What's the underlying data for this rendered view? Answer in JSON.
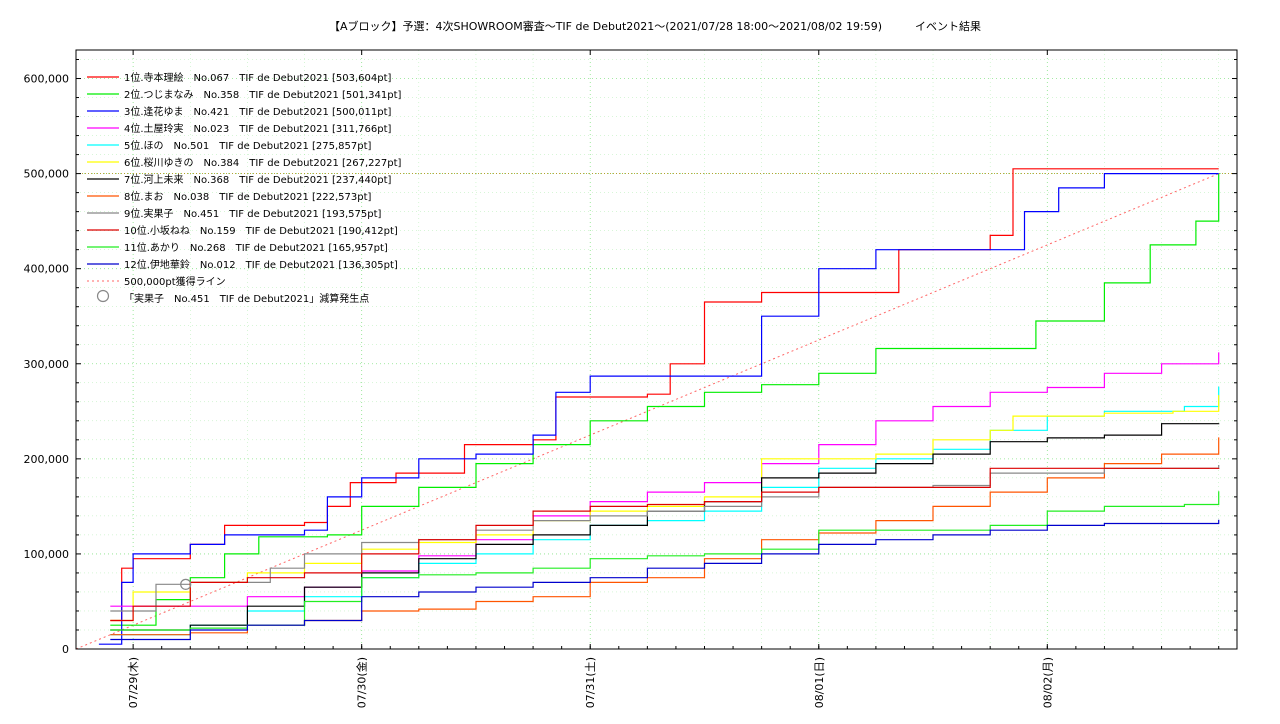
{
  "chart_data": {
    "type": "line",
    "title": "【Aブロック】予選：4次SHOWROOM審査〜TIF de Debut2021〜(2021/07/28 18:00〜2021/08/02 19:59)　　　イベント結果",
    "xlabel": "",
    "ylabel": "",
    "xlim": [
      0,
      5.08
    ],
    "ylim": [
      0,
      630000
    ],
    "y_ticks": [
      0,
      100000,
      200000,
      300000,
      400000,
      500000,
      600000
    ],
    "y_tick_labels": [
      "0",
      "100,000",
      "200,000",
      "300,000",
      "400,000",
      "500,000",
      "600,000"
    ],
    "x_ticks": [
      0.25,
      1.25,
      2.25,
      3.25,
      4.25
    ],
    "x_tick_labels": [
      "07/29(木)",
      "07/30(金)",
      "07/31(土)",
      "08/01(日)",
      "08/02(月)"
    ],
    "grid": true,
    "legend_position": "top-left",
    "series": [
      {
        "name": "1位.寺本理絵　No.067　TIF de Debut2021 [503,604pt]",
        "color": "#ff0000",
        "points": [
          [
            0.15,
            30000
          ],
          [
            0.2,
            85000
          ],
          [
            0.25,
            95000
          ],
          [
            0.4,
            95000
          ],
          [
            0.5,
            110000
          ],
          [
            0.65,
            130000
          ],
          [
            1.0,
            133000
          ],
          [
            1.1,
            150000
          ],
          [
            1.2,
            175000
          ],
          [
            1.4,
            185000
          ],
          [
            1.7,
            215000
          ],
          [
            2.0,
            220000
          ],
          [
            2.1,
            265000
          ],
          [
            2.5,
            268000
          ],
          [
            2.6,
            300000
          ],
          [
            2.75,
            365000
          ],
          [
            3.0,
            375000
          ],
          [
            3.5,
            375000
          ],
          [
            3.6,
            420000
          ],
          [
            4.0,
            435000
          ],
          [
            4.1,
            505000
          ],
          [
            5.0,
            505000
          ]
        ]
      },
      {
        "name": "2位.つじまなみ　No.358　TIF de Debut2021 [501,341pt]",
        "color": "#00ee00",
        "points": [
          [
            0.15,
            25000
          ],
          [
            0.35,
            52000
          ],
          [
            0.5,
            75000
          ],
          [
            0.65,
            100000
          ],
          [
            0.8,
            118000
          ],
          [
            1.1,
            120000
          ],
          [
            1.25,
            150000
          ],
          [
            1.5,
            170000
          ],
          [
            1.75,
            195000
          ],
          [
            2.0,
            215000
          ],
          [
            2.25,
            240000
          ],
          [
            2.5,
            255000
          ],
          [
            2.75,
            270000
          ],
          [
            3.0,
            278000
          ],
          [
            3.25,
            290000
          ],
          [
            3.5,
            316000
          ],
          [
            4.0,
            316000
          ],
          [
            4.2,
            345000
          ],
          [
            4.5,
            385000
          ],
          [
            4.7,
            425000
          ],
          [
            4.9,
            450000
          ],
          [
            5.0,
            500000
          ]
        ]
      },
      {
        "name": "3位.逢花ゆま　No.421　TIF de Debut2021 [500,011pt]",
        "color": "#0000ff",
        "points": [
          [
            0.1,
            5000
          ],
          [
            0.2,
            70000
          ],
          [
            0.25,
            100000
          ],
          [
            0.5,
            110000
          ],
          [
            0.65,
            120000
          ],
          [
            1.0,
            125000
          ],
          [
            1.1,
            160000
          ],
          [
            1.25,
            180000
          ],
          [
            1.5,
            200000
          ],
          [
            1.75,
            205000
          ],
          [
            2.0,
            225000
          ],
          [
            2.1,
            270000
          ],
          [
            2.25,
            287000
          ],
          [
            2.75,
            287000
          ],
          [
            3.0,
            350000
          ],
          [
            3.25,
            400000
          ],
          [
            3.5,
            420000
          ],
          [
            3.95,
            420000
          ],
          [
            4.15,
            460000
          ],
          [
            4.3,
            485000
          ],
          [
            4.5,
            500000
          ],
          [
            5.0,
            500000
          ]
        ]
      },
      {
        "name": "4位.土屋玲実　No.023　TIF de Debut2021 [311,766pt]",
        "color": "#ff00ff",
        "points": [
          [
            0.15,
            45000
          ],
          [
            0.5,
            45000
          ],
          [
            0.75,
            55000
          ],
          [
            1.0,
            65000
          ],
          [
            1.25,
            82000
          ],
          [
            1.5,
            98000
          ],
          [
            1.75,
            115000
          ],
          [
            2.0,
            140000
          ],
          [
            2.25,
            155000
          ],
          [
            2.5,
            165000
          ],
          [
            2.75,
            175000
          ],
          [
            3.0,
            195000
          ],
          [
            3.25,
            215000
          ],
          [
            3.5,
            240000
          ],
          [
            3.75,
            255000
          ],
          [
            4.0,
            270000
          ],
          [
            4.25,
            275000
          ],
          [
            4.5,
            290000
          ],
          [
            4.75,
            300000
          ],
          [
            5.0,
            312000
          ]
        ]
      },
      {
        "name": "5位.ほの　No.501　TIF de Debut2021 [275,857pt]",
        "color": "#00ffff",
        "points": [
          [
            0.15,
            15000
          ],
          [
            0.5,
            25000
          ],
          [
            0.75,
            40000
          ],
          [
            1.0,
            55000
          ],
          [
            1.25,
            75000
          ],
          [
            1.5,
            90000
          ],
          [
            1.75,
            100000
          ],
          [
            2.0,
            115000
          ],
          [
            2.25,
            130000
          ],
          [
            2.5,
            135000
          ],
          [
            2.75,
            145000
          ],
          [
            3.0,
            170000
          ],
          [
            3.25,
            190000
          ],
          [
            3.5,
            200000
          ],
          [
            3.75,
            210000
          ],
          [
            4.0,
            230000
          ],
          [
            4.25,
            245000
          ],
          [
            4.5,
            250000
          ],
          [
            4.85,
            255000
          ],
          [
            5.0,
            276000
          ]
        ]
      },
      {
        "name": "6位.桜川ゆきの　No.384　TIF de Debut2021 [267,227pt]",
        "color": "#ffff00",
        "points": [
          [
            0.15,
            30000
          ],
          [
            0.25,
            60000
          ],
          [
            0.5,
            70000
          ],
          [
            0.75,
            80000
          ],
          [
            1.0,
            90000
          ],
          [
            1.25,
            105000
          ],
          [
            1.5,
            112000
          ],
          [
            1.75,
            120000
          ],
          [
            2.0,
            135000
          ],
          [
            2.25,
            145000
          ],
          [
            2.5,
            150000
          ],
          [
            2.75,
            160000
          ],
          [
            3.0,
            200000
          ],
          [
            3.5,
            205000
          ],
          [
            3.75,
            220000
          ],
          [
            4.0,
            230000
          ],
          [
            4.1,
            245000
          ],
          [
            4.5,
            248000
          ],
          [
            4.8,
            250000
          ],
          [
            5.0,
            267000
          ]
        ]
      },
      {
        "name": "7位.河上未来　No.368　TIF de Debut2021 [237,440pt]",
        "color": "#000000",
        "points": [
          [
            0.15,
            20000
          ],
          [
            0.5,
            25000
          ],
          [
            0.75,
            45000
          ],
          [
            1.0,
            65000
          ],
          [
            1.25,
            80000
          ],
          [
            1.5,
            95000
          ],
          [
            1.75,
            110000
          ],
          [
            2.0,
            120000
          ],
          [
            2.25,
            130000
          ],
          [
            2.5,
            145000
          ],
          [
            2.75,
            155000
          ],
          [
            3.0,
            180000
          ],
          [
            3.25,
            185000
          ],
          [
            3.5,
            195000
          ],
          [
            3.75,
            205000
          ],
          [
            4.0,
            218000
          ],
          [
            4.25,
            222000
          ],
          [
            4.5,
            225000
          ],
          [
            4.75,
            237000
          ],
          [
            5.0,
            237500
          ]
        ]
      },
      {
        "name": "8位.まお　No.038　TIF de Debut2021 [222,573pt]",
        "color": "#ff5500",
        "points": [
          [
            0.15,
            15000
          ],
          [
            0.5,
            17000
          ],
          [
            0.75,
            25000
          ],
          [
            1.0,
            30000
          ],
          [
            1.25,
            40000
          ],
          [
            1.5,
            42000
          ],
          [
            1.75,
            50000
          ],
          [
            2.0,
            55000
          ],
          [
            2.25,
            70000
          ],
          [
            2.5,
            75000
          ],
          [
            2.75,
            95000
          ],
          [
            3.0,
            115000
          ],
          [
            3.25,
            122000
          ],
          [
            3.5,
            135000
          ],
          [
            3.75,
            150000
          ],
          [
            4.0,
            165000
          ],
          [
            4.25,
            180000
          ],
          [
            4.5,
            195000
          ],
          [
            4.75,
            205000
          ],
          [
            5.0,
            222500
          ]
        ]
      },
      {
        "name": "9位.実果子　No.451　TIF de Debut2021 [193,575pt]",
        "color": "#888888",
        "points": [
          [
            0.15,
            40000
          ],
          [
            0.35,
            68000
          ],
          [
            0.5,
            70000
          ],
          [
            0.75,
            70000
          ],
          [
            0.85,
            85000
          ],
          [
            1.0,
            100000
          ],
          [
            1.25,
            112000
          ],
          [
            1.5,
            115000
          ],
          [
            1.75,
            125000
          ],
          [
            2.0,
            135000
          ],
          [
            2.25,
            140000
          ],
          [
            2.5,
            145000
          ],
          [
            2.75,
            150000
          ],
          [
            3.0,
            160000
          ],
          [
            3.25,
            170000
          ],
          [
            3.75,
            172000
          ],
          [
            4.0,
            185000
          ],
          [
            4.5,
            190000
          ],
          [
            5.0,
            193500
          ]
        ]
      },
      {
        "name": "10位.小坂ねね　No.159　TIF de Debut2021 [190,412pt]",
        "color": "#dd0000",
        "points": [
          [
            0.15,
            30000
          ],
          [
            0.25,
            45000
          ],
          [
            0.5,
            70000
          ],
          [
            0.75,
            75000
          ],
          [
            1.0,
            80000
          ],
          [
            1.25,
            100000
          ],
          [
            1.5,
            115000
          ],
          [
            1.75,
            130000
          ],
          [
            2.0,
            145000
          ],
          [
            2.25,
            150000
          ],
          [
            2.5,
            152000
          ],
          [
            2.75,
            155000
          ],
          [
            3.0,
            165000
          ],
          [
            3.25,
            170000
          ],
          [
            3.75,
            170000
          ],
          [
            4.0,
            190000
          ],
          [
            4.5,
            190000
          ],
          [
            5.0,
            190400
          ]
        ]
      },
      {
        "name": "11位.あかり　No.268　TIF de Debut2021 [165,957pt]",
        "color": "#22ee22",
        "points": [
          [
            0.15,
            20000
          ],
          [
            0.5,
            22000
          ],
          [
            0.75,
            25000
          ],
          [
            1.0,
            50000
          ],
          [
            1.25,
            75000
          ],
          [
            1.5,
            78000
          ],
          [
            1.75,
            80000
          ],
          [
            2.0,
            85000
          ],
          [
            2.25,
            95000
          ],
          [
            2.5,
            98000
          ],
          [
            2.75,
            100000
          ],
          [
            3.0,
            105000
          ],
          [
            3.25,
            125000
          ],
          [
            3.5,
            125000
          ],
          [
            3.75,
            125000
          ],
          [
            4.0,
            130000
          ],
          [
            4.25,
            145000
          ],
          [
            4.5,
            150000
          ],
          [
            4.85,
            152000
          ],
          [
            5.0,
            166000
          ]
        ]
      },
      {
        "name": "12位.伊地華鈴　No.012　TIF de Debut2021 [136,305pt]",
        "color": "#0000cc",
        "points": [
          [
            0.15,
            10000
          ],
          [
            0.5,
            20000
          ],
          [
            0.75,
            25000
          ],
          [
            1.0,
            30000
          ],
          [
            1.25,
            55000
          ],
          [
            1.5,
            60000
          ],
          [
            1.75,
            65000
          ],
          [
            2.0,
            70000
          ],
          [
            2.25,
            75000
          ],
          [
            2.5,
            85000
          ],
          [
            2.75,
            90000
          ],
          [
            3.0,
            100000
          ],
          [
            3.25,
            110000
          ],
          [
            3.5,
            115000
          ],
          [
            3.75,
            120000
          ],
          [
            4.0,
            125000
          ],
          [
            4.25,
            130000
          ],
          [
            4.5,
            132000
          ],
          [
            4.95,
            132000
          ],
          [
            5.0,
            136000
          ]
        ]
      }
    ],
    "reference_line": {
      "name": "500,000pt獲得ライン",
      "color": "#ff6666",
      "points": [
        [
          0,
          0
        ],
        [
          5.0,
          500000
        ]
      ]
    },
    "reference_level": {
      "y": 500000,
      "color": "#aa8800"
    },
    "markers": {
      "name": "「実果子　No.451　TIF de Debut2021」減算発生点",
      "color": "#888888",
      "points": [
        [
          0.48,
          68000
        ]
      ]
    }
  }
}
